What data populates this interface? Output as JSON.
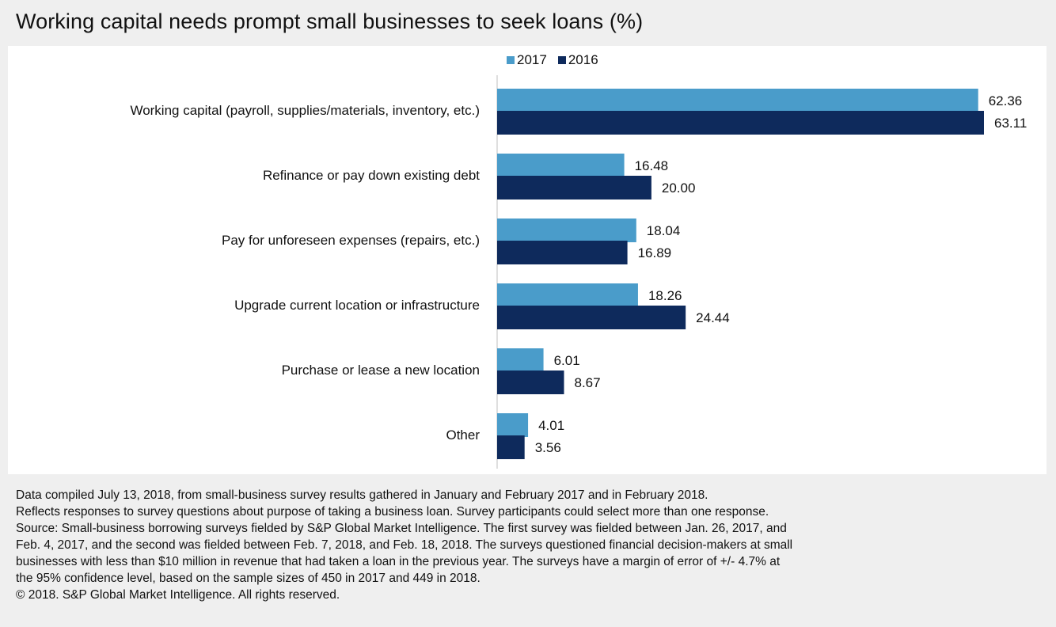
{
  "title": "Working capital needs prompt small businesses to seek loans (%)",
  "colors": {
    "series_2017": "#4a9cca",
    "series_2016": "#0e2a5c",
    "background": "#efefef",
    "panel": "#ffffff"
  },
  "legend": {
    "items": [
      {
        "label": "2017"
      },
      {
        "label": "2016"
      }
    ]
  },
  "chart_data": {
    "type": "bar",
    "orientation": "horizontal",
    "categories": [
      "Working capital (payroll, supplies/materials, inventory, etc.)",
      "Refinance or pay down existing debt",
      "Pay for unforeseen expenses (repairs, etc.)",
      "Upgrade current location or infrastructure",
      "Purchase or lease a new location",
      "Other"
    ],
    "series": [
      {
        "name": "2017",
        "values": [
          62.36,
          16.48,
          18.04,
          18.26,
          6.01,
          4.01
        ],
        "labels": [
          "62.36",
          "16.48",
          "18.04",
          "18.26",
          "6.01",
          "4.01"
        ]
      },
      {
        "name": "2016",
        "values": [
          63.11,
          20.0,
          16.89,
          24.44,
          8.67,
          3.56
        ],
        "labels": [
          "63.11",
          "20.00",
          "16.89",
          "24.44",
          "8.67",
          "3.56"
        ]
      }
    ],
    "xlim": [
      0,
      63.11
    ],
    "grid": false,
    "legend_position": "top"
  },
  "notes": [
    "Data compiled July 13, 2018, from small-business survey results gathered in January and February 2017 and in February 2018.",
    "Reflects responses to survey questions about purpose of taking a business loan. Survey participants could select more than one response.",
    "Source: Small-business borrowing surveys fielded by S&P Global Market Intelligence. The first survey was fielded between Jan. 26, 2017, and",
    "Feb. 4, 2017, and the second was fielded between Feb. 7, 2018, and Feb. 18, 2018. The surveys questioned financial decision-makers at small",
    "businesses with less than $10 million in revenue that had taken a loan in the previous year. The surveys have a margin of error of +/- 4.7% at",
    "the 95% confidence level, based on the sample sizes of 450 in 2017 and 449 in 2018.",
    "© 2018. S&P Global Market Intelligence. All rights reserved."
  ]
}
